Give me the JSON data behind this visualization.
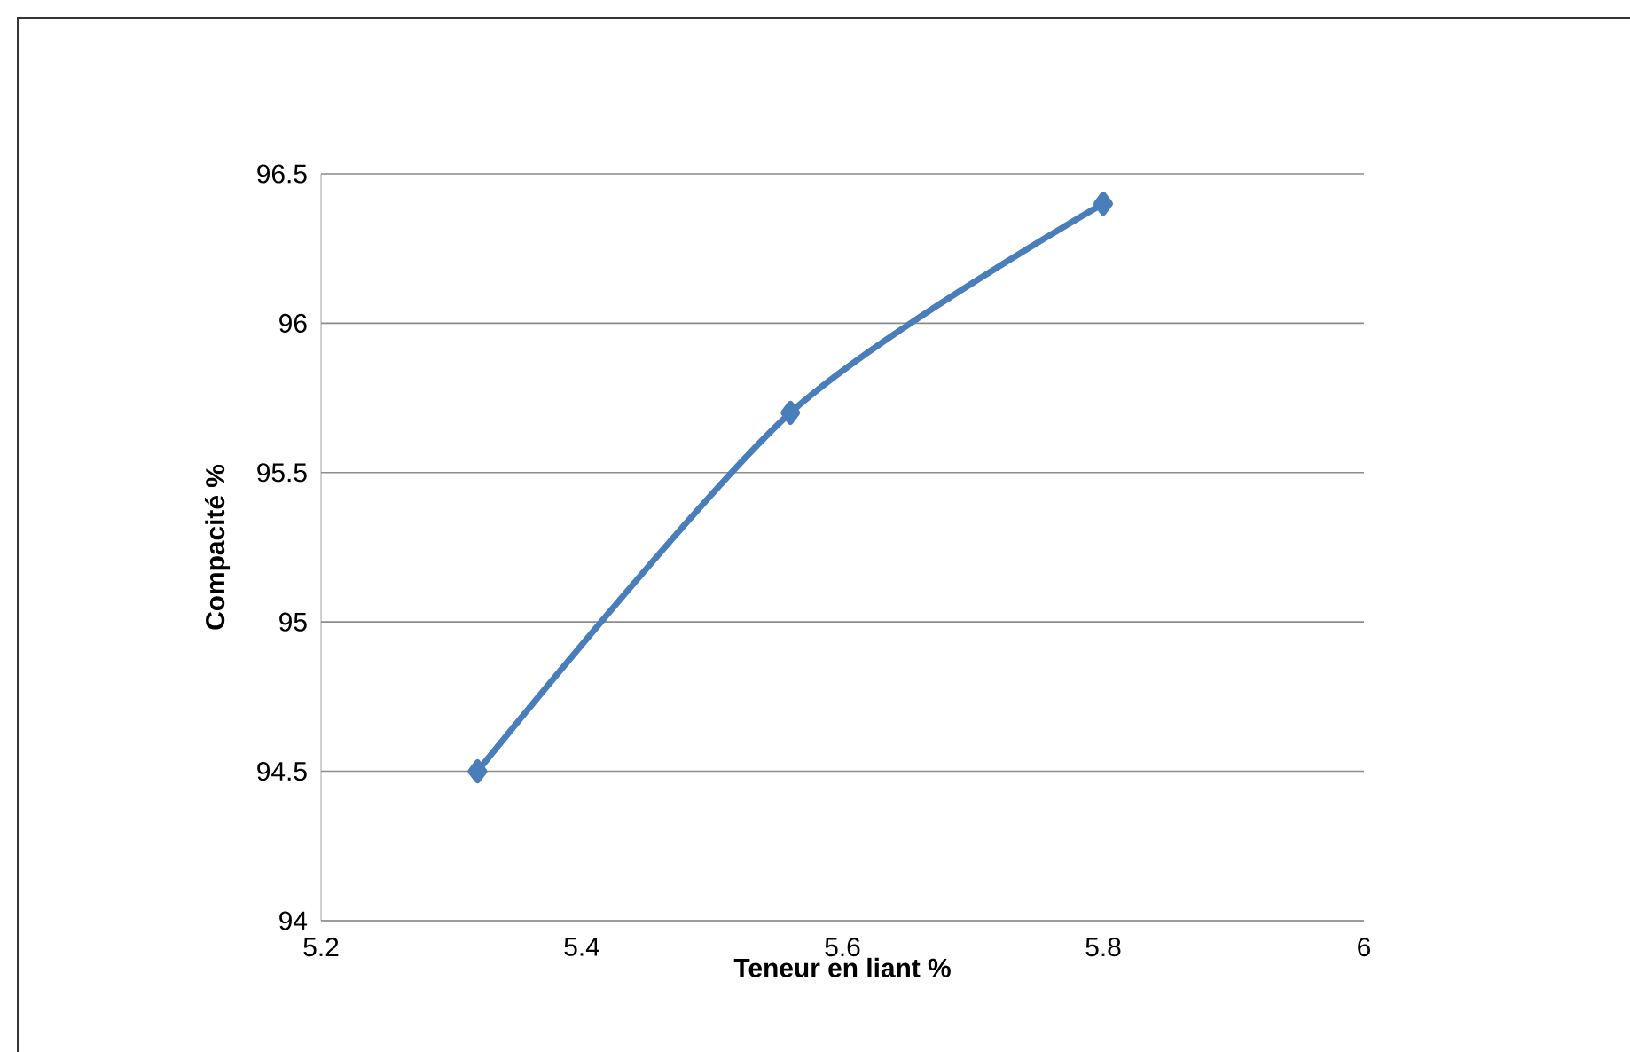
{
  "chart_data": {
    "type": "line",
    "xlabel": "Teneur en liant %",
    "ylabel": "Compacité %",
    "x": [
      5.32,
      5.56,
      5.8
    ],
    "series": [
      {
        "color": "#4a7ebb",
        "values": [
          94.5,
          95.7,
          96.4
        ]
      }
    ],
    "xlim": [
      5.2,
      6
    ],
    "xticks": [
      5.2,
      5.4,
      5.6,
      5.8,
      6
    ],
    "ylim": [
      94,
      96.5
    ],
    "yticks": [
      94,
      94.5,
      95,
      95.5,
      96,
      96.5
    ],
    "grid": "y",
    "marker": "diamond",
    "line_style": "solid"
  }
}
